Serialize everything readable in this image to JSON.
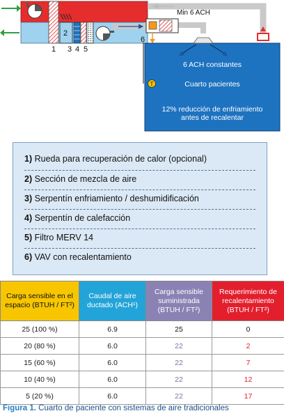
{
  "diagram": {
    "min_ach_label": "Min 6 ACH",
    "section_numbers": [
      "1",
      "3",
      "4",
      "5"
    ],
    "mix_section_number": "2",
    "vav_number": "6",
    "ach_constant_label": "6 ACH constantes",
    "room_label": "Cuarto pacientes",
    "reduction_line1": "12% reducción de enfriamiento",
    "reduction_line2": "antes de recalentar",
    "thermostat_label": "T",
    "colors": {
      "ahu_red": "#e52d2d",
      "ahu_blue": "#9fd2ee",
      "room_blue": "#1e73c0",
      "duct_gray": "#c9c9c9",
      "arrow_green": "#2ea043"
    }
  },
  "legend": {
    "items": [
      {
        "num": "1)",
        "text": "Rueda para recuperación de calor (opcional)"
      },
      {
        "num": "2)",
        "text": "Sección de mezcla de aire"
      },
      {
        "num": "3)",
        "text": "Serpentín enfriamiento / deshumidificación"
      },
      {
        "num": "4)",
        "text": "Serpentín de calefacción"
      },
      {
        "num": "5)",
        "text": "Filtro MERV 14"
      },
      {
        "num": "6)",
        "text": "VAV con recalentamiento"
      }
    ]
  },
  "table": {
    "headers": [
      {
        "line1": "Carga sensible en el",
        "line2": "espacio (BTUH / FT²)"
      },
      {
        "line1": "Caudal de aire",
        "line2": "ductado (ACH¹)"
      },
      {
        "line1": "Carga sensible",
        "line2": "suministrada",
        "line3": "(BTUH / FT²)"
      },
      {
        "line1": "Requerimiento de",
        "line2": "recalentamiento",
        "line3": "(BTUH / FT²)"
      }
    ],
    "rows": [
      [
        "25 (100 %)",
        "6.9",
        "25",
        "0"
      ],
      [
        "20 (80 %)",
        "6.0",
        "22",
        "2"
      ],
      [
        "15 (60 %)",
        "6.0",
        "22",
        "7"
      ],
      [
        "10 (40 %)",
        "6.0",
        "22",
        "12"
      ],
      [
        "5 (20 %)",
        "6.0",
        "22",
        "17"
      ]
    ]
  },
  "caption": {
    "label": "Figura 1.",
    "text": " Cuarto de paciente con sistemas de aire tradicionales"
  }
}
